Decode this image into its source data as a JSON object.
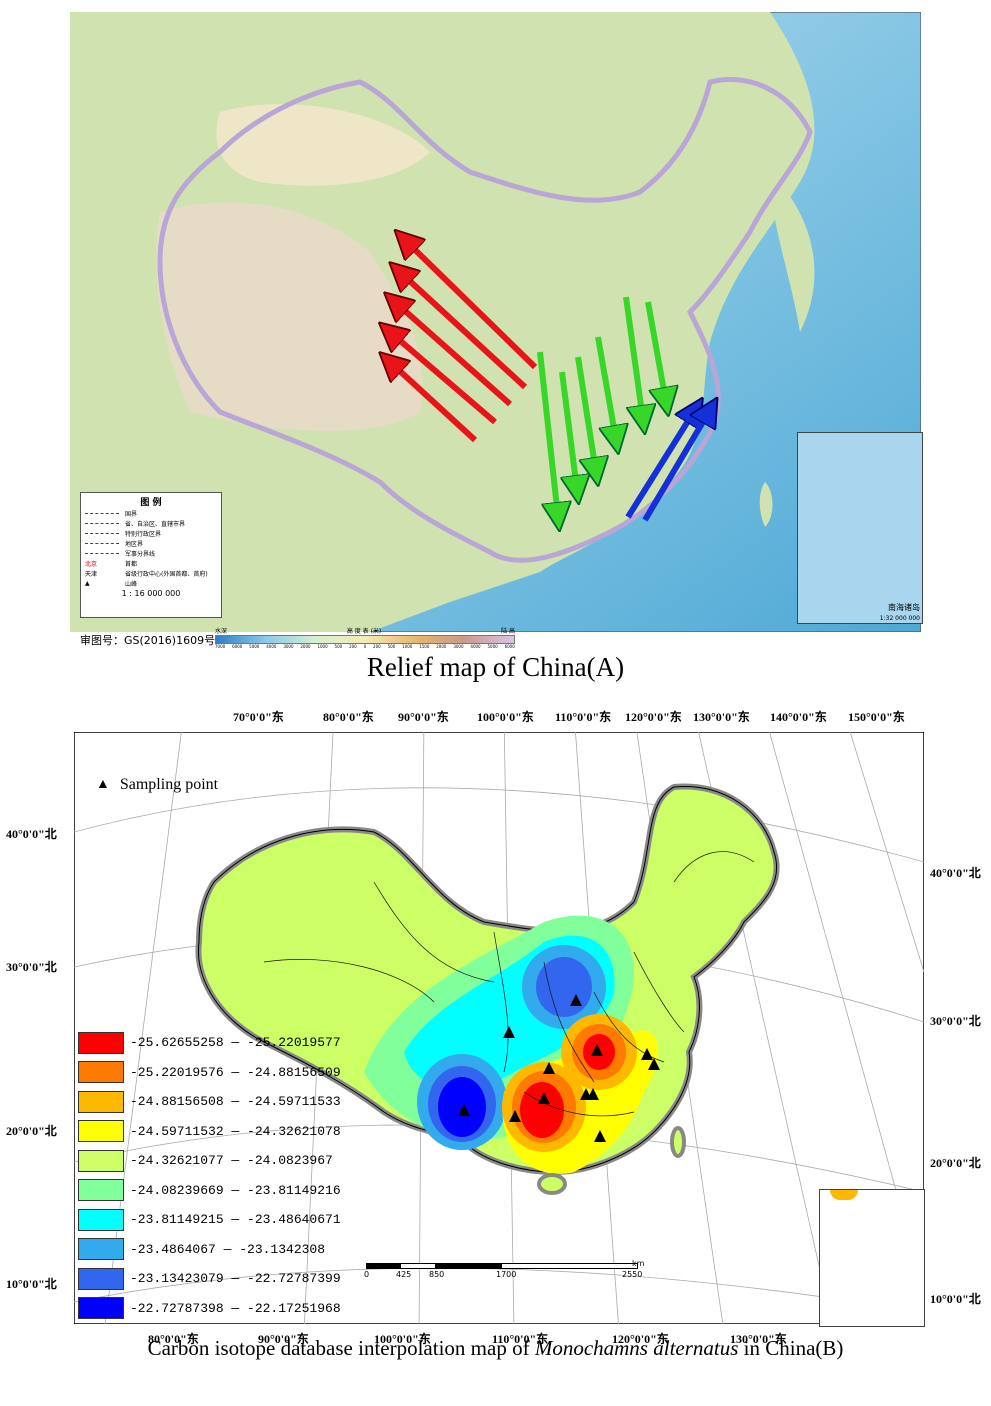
{
  "panel_a": {
    "caption": "Relief map of China(A)",
    "approval_number": "审图号：GS(2016)1609号",
    "legend_title": "图 例",
    "legend_items": [
      "国界",
      "省、自治区、直辖市界",
      "特别行政区界",
      "地区界",
      "军事分界线",
      "北京",
      "首都",
      "天津",
      "省级行政中心(外国首都、首府)",
      "山峰"
    ],
    "scale": "1 : 16 000 000",
    "inset_label": "南海诸岛",
    "inset_scale": "1:32 000 000",
    "elevation_title": "高 度 表 (米)",
    "elevation_left": "水深",
    "elevation_right": "陆 高",
    "elevation_ticks": [
      "7000",
      "6000",
      "5000",
      "4000",
      "3000",
      "2000",
      "1000",
      "500",
      "200",
      "0",
      "200",
      "500",
      "1000",
      "1500",
      "2000",
      "3000",
      "4000",
      "5000",
      "6000"
    ],
    "arrow_colors": {
      "red": "#e8141a",
      "green": "#39d62a",
      "blue": "#1530d8"
    }
  },
  "panel_b": {
    "caption_prefix": "Carbon isotope database interpolation map of ",
    "caption_species": "Monochamns alternatus",
    "caption_suffix": " in China(B)",
    "sampling_legend": "Sampling point",
    "lon_top": [
      "70°0'0\"东",
      "80°0'0\"东",
      "90°0'0\"东",
      "100°0'0\"东",
      "110°0'0\"东",
      "120°0'0\"东",
      "130°0'0\"东",
      "140°0'0\"东",
      "150°0'0\"东"
    ],
    "lon_bottom": [
      "80°0'0\"东",
      "90°0'0\"东",
      "100°0'0\"东",
      "110°0'0\"东",
      "120°0'0\"东",
      "130°0'0\"东"
    ],
    "lat_left": [
      "40°0'0\"北",
      "30°0'0\"北",
      "20°0'0\"北",
      "10°0'0\"北"
    ],
    "lat_right": [
      "40°0'0\"北",
      "30°0'0\"北",
      "20°0'0\"北",
      "10°0'0\"北"
    ],
    "scale_labels": [
      "0",
      "425",
      "850",
      "1700",
      "2550"
    ],
    "scale_unit": "km",
    "classes": [
      {
        "label": "-25.62655258 — -25.22019577",
        "color": "#ff0000"
      },
      {
        "label": "-25.22019576 — -24.88156509",
        "color": "#ff7a00"
      },
      {
        "label": "-24.88156508 — -24.59711533",
        "color": "#ffb800"
      },
      {
        "label": "-24.59711532 — -24.32621078",
        "color": "#ffff00"
      },
      {
        "label": "-24.32621077 — -24.0823967",
        "color": "#ccff66"
      },
      {
        "label": "-24.08239669 — -23.81149216",
        "color": "#80ff9a"
      },
      {
        "label": "-23.81149215 — -23.48640671",
        "color": "#00ffff"
      },
      {
        "label": "-23.4864067 — -23.1342308",
        "color": "#33aaee"
      },
      {
        "label": "-23.13423079 — -22.72787399",
        "color": "#3366ee"
      },
      {
        "label": "-22.72787398 — -22.17251968",
        "color": "#0000ff"
      }
    ]
  }
}
